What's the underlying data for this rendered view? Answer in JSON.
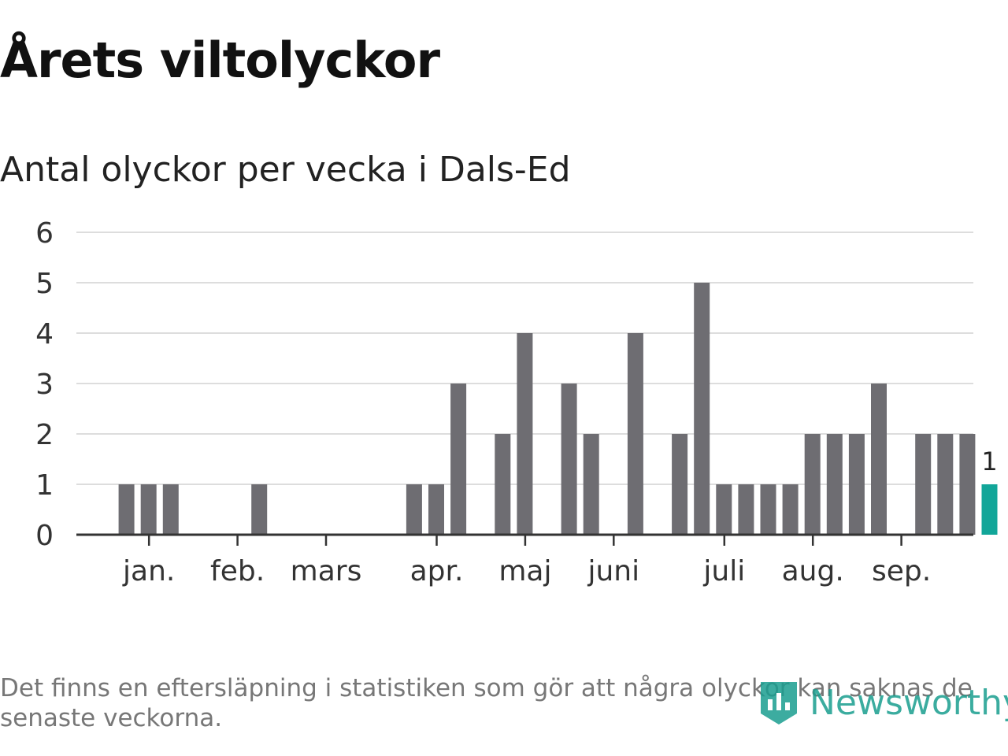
{
  "header": {
    "title": "Årets viltolyckor",
    "subtitle": "Antal olyckor per vecka i Dals-Ed"
  },
  "chart_data": {
    "type": "bar",
    "title": "Årets viltolyckor",
    "subtitle": "Antal olyckor per vecka i Dals-Ed",
    "xlabel": "",
    "ylabel": "",
    "ylim": [
      0,
      6
    ],
    "y_ticks": [
      0,
      1,
      2,
      3,
      4,
      5,
      6
    ],
    "grid": true,
    "weeks": [
      1,
      2,
      3,
      4,
      5,
      6,
      7,
      8,
      9,
      10,
      11,
      12,
      13,
      14,
      15,
      16,
      17,
      18,
      19,
      20,
      21,
      22,
      23,
      24,
      25,
      26,
      27,
      28,
      29,
      30,
      31,
      32,
      33,
      34,
      35,
      36,
      37,
      38,
      39,
      40
    ],
    "values": [
      0,
      1,
      1,
      1,
      0,
      0,
      0,
      1,
      0,
      0,
      0,
      0,
      0,
      0,
      1,
      1,
      3,
      0,
      2,
      4,
      0,
      3,
      2,
      0,
      4,
      0,
      2,
      5,
      1,
      1,
      1,
      1,
      2,
      2,
      2,
      3,
      0,
      2,
      2,
      2
    ],
    "month_labels": [
      {
        "label": "jan.",
        "week": 3
      },
      {
        "label": "feb.",
        "week": 7
      },
      {
        "label": "mars",
        "week": 11
      },
      {
        "label": "apr.",
        "week": 16
      },
      {
        "label": "maj",
        "week": 20
      },
      {
        "label": "juni",
        "week": 24
      },
      {
        "label": "juli",
        "week": 29
      },
      {
        "label": "aug.",
        "week": 33
      },
      {
        "label": "sep.",
        "week": 37
      }
    ],
    "highlight": {
      "week": 41,
      "value": 1,
      "label": "1"
    },
    "colors": {
      "bar": "#6e6d72",
      "highlight": "#12a699",
      "grid": "#dddddd",
      "axis": "#333333"
    }
  },
  "footer": {
    "note": "Det finns en eftersläpning i statistiken som gör att några olyckor kan saknas de senaste veckorna.",
    "brand": "Newsworthy",
    "brand_color": "#1a9e8f"
  }
}
